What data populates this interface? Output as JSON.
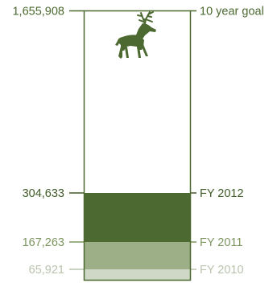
{
  "chart_data": {
    "type": "bar",
    "orientation": "vertical-stacked-progress",
    "goal": {
      "label": "10 year goal",
      "value": 1655908,
      "value_label": "1,655,908"
    },
    "segments": [
      {
        "category": "FY 2010",
        "value": 65921,
        "value_label": "65,921",
        "color": "#cfd8c7",
        "label_color": "#b9c4ae"
      },
      {
        "category": "FY 2011",
        "value": 167263,
        "value_label": "167,263",
        "color": "#9caf86",
        "label_color": "#7d9561"
      },
      {
        "category": "FY 2012",
        "value": 304633,
        "value_label": "304,633",
        "color": "#4b6930",
        "label_color": "#3f5a26"
      }
    ],
    "goal_color": "#4b6930",
    "ylim": [
      0,
      1655908
    ],
    "icon": "elk-icon"
  }
}
